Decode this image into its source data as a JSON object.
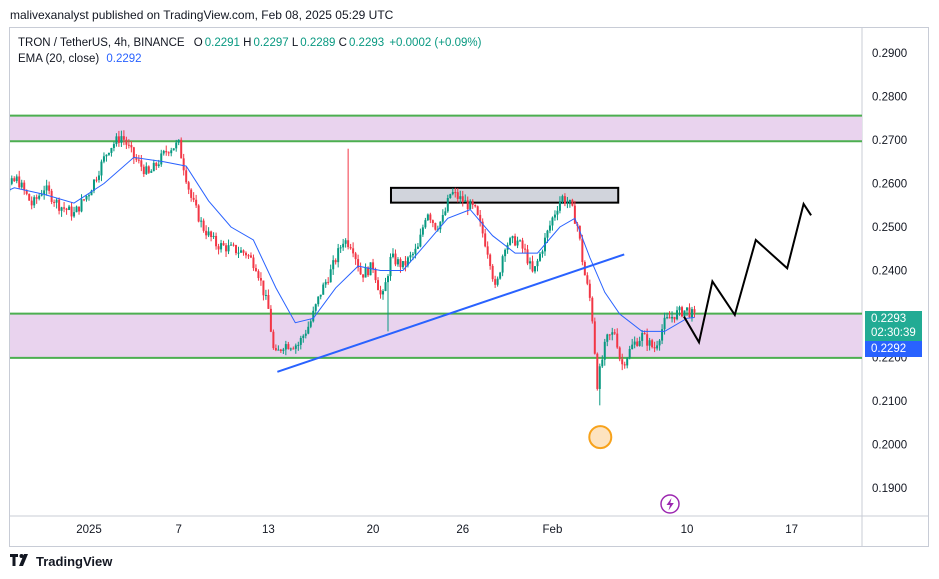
{
  "header": {
    "published_text": "malivexanalyst published on TradingView.com, Feb 08, 2025 05:29 UTC"
  },
  "legend": {
    "symbol": "TRON / TetherUS, 4h, BINANCE",
    "o_label": "O",
    "o_value": "0.2291",
    "h_label": "H",
    "h_value": "0.2297",
    "l_label": "L",
    "l_value": "0.2289",
    "c_label": "C",
    "c_value": "0.2293",
    "change": "+0.0002 (+0.09%)",
    "ema_label": "EMA (20, close)",
    "ema_value": "0.2292"
  },
  "badges": {
    "close_price": "0.2293",
    "countdown": "02:30:39",
    "ema_price": "0.2292"
  },
  "footer": {
    "brand": "TradingView"
  },
  "colors": {
    "up": "#089981",
    "down": "#f23645",
    "ema": "#2962ff",
    "zone_fill": "#e9d3ee",
    "zone_border": "#4caf50",
    "resistance_box": "#d1d4dc"
  },
  "icons": {
    "lightning": "lightning-icon",
    "logo": "tradingview-logo-icon"
  },
  "chart_data": {
    "type": "candlestick",
    "interval": "4h",
    "ylim": [
      0.186,
      0.293
    ],
    "y_ticks": [
      "0.2900",
      "0.2800",
      "0.2700",
      "0.2600",
      "0.2500",
      "0.2400",
      "0.2200",
      "0.2100",
      "0.2000",
      "0.1900"
    ],
    "x_ticks": [
      {
        "label": "2025",
        "day": 0
      },
      {
        "label": "7",
        "day": 6
      },
      {
        "label": "13",
        "day": 12
      },
      {
        "label": "20",
        "day": 19
      },
      {
        "label": "26",
        "day": 25
      },
      {
        "label": "Feb",
        "day": 31
      },
      {
        "label": "10",
        "day": 40
      },
      {
        "label": "17",
        "day": 47
      }
    ],
    "x_range_days": [
      -7.2,
      50.5
    ],
    "price_path": [
      [
        -7.0,
        0.253
      ],
      [
        -6.3,
        0.262
      ],
      [
        -5.5,
        0.259
      ],
      [
        -4.8,
        0.261
      ],
      [
        -3.8,
        0.255
      ],
      [
        -3.0,
        0.259
      ],
      [
        -2.0,
        0.255
      ],
      [
        -1.0,
        0.253
      ],
      [
        0.0,
        0.258
      ],
      [
        1.3,
        0.268
      ],
      [
        2.2,
        0.271
      ],
      [
        3.0,
        0.266
      ],
      [
        4.0,
        0.262
      ],
      [
        5.3,
        0.268
      ],
      [
        6.0,
        0.269
      ],
      [
        6.8,
        0.257
      ],
      [
        7.6,
        0.25
      ],
      [
        8.5,
        0.246
      ],
      [
        9.5,
        0.245
      ],
      [
        10.5,
        0.244
      ],
      [
        11.2,
        0.241
      ],
      [
        12.0,
        0.231
      ],
      [
        12.4,
        0.22
      ],
      [
        13.0,
        0.223
      ],
      [
        14.0,
        0.223
      ],
      [
        14.8,
        0.228
      ],
      [
        15.5,
        0.235
      ],
      [
        16.2,
        0.24
      ],
      [
        17.0,
        0.247
      ],
      [
        17.6,
        0.246
      ],
      [
        18.2,
        0.239
      ],
      [
        19.0,
        0.241
      ],
      [
        19.6,
        0.233
      ],
      [
        20.2,
        0.243
      ],
      [
        21.0,
        0.241
      ],
      [
        22.0,
        0.245
      ],
      [
        22.6,
        0.254
      ],
      [
        23.2,
        0.25
      ],
      [
        23.7,
        0.252
      ],
      [
        24.2,
        0.258
      ],
      [
        25.0,
        0.256
      ],
      [
        25.8,
        0.254
      ],
      [
        26.3,
        0.249
      ],
      [
        26.8,
        0.243
      ],
      [
        27.2,
        0.235
      ],
      [
        27.8,
        0.246
      ],
      [
        28.6,
        0.247
      ],
      [
        29.2,
        0.244
      ],
      [
        29.7,
        0.239
      ],
      [
        30.3,
        0.245
      ],
      [
        31.0,
        0.252
      ],
      [
        31.6,
        0.257
      ],
      [
        32.2,
        0.255
      ],
      [
        32.7,
        0.25
      ],
      [
        33.1,
        0.24
      ],
      [
        33.6,
        0.232
      ],
      [
        34.0,
        0.214
      ],
      [
        34.6,
        0.224
      ],
      [
        35.2,
        0.226
      ],
      [
        35.6,
        0.218
      ],
      [
        36.4,
        0.223
      ],
      [
        37.0,
        0.225
      ],
      [
        37.8,
        0.222
      ],
      [
        38.5,
        0.228
      ],
      [
        39.2,
        0.23
      ],
      [
        40.0,
        0.231
      ],
      [
        40.5,
        0.2293
      ]
    ],
    "wick_spikes": [
      {
        "day": 17.4,
        "high": 0.268
      },
      {
        "day": 20.0,
        "low": 0.226
      },
      {
        "day": 34.2,
        "low": 0.209
      }
    ],
    "ema_20": [
      [
        -7.0,
        0.256
      ],
      [
        -5.0,
        0.259
      ],
      [
        -3.0,
        0.2575
      ],
      [
        -1.0,
        0.2555
      ],
      [
        1.0,
        0.26
      ],
      [
        3.0,
        0.266
      ],
      [
        5.0,
        0.265
      ],
      [
        6.5,
        0.264
      ],
      [
        8.0,
        0.256
      ],
      [
        9.5,
        0.25
      ],
      [
        11.0,
        0.247
      ],
      [
        12.5,
        0.236
      ],
      [
        13.8,
        0.228
      ],
      [
        15.0,
        0.229
      ],
      [
        16.5,
        0.236
      ],
      [
        18.0,
        0.241
      ],
      [
        19.5,
        0.24
      ],
      [
        21.0,
        0.24
      ],
      [
        22.5,
        0.246
      ],
      [
        24.0,
        0.252
      ],
      [
        25.5,
        0.254
      ],
      [
        27.0,
        0.248
      ],
      [
        28.5,
        0.244
      ],
      [
        30.0,
        0.244
      ],
      [
        31.5,
        0.25
      ],
      [
        32.5,
        0.252
      ],
      [
        33.5,
        0.243
      ],
      [
        34.5,
        0.235
      ],
      [
        35.5,
        0.23
      ],
      [
        37.0,
        0.226
      ],
      [
        38.5,
        0.226
      ],
      [
        40.0,
        0.229
      ],
      [
        40.5,
        0.2292
      ]
    ],
    "annotations": {
      "support_zone": [
        0.2199,
        0.2301
      ],
      "resistance_zone": [
        0.2697,
        0.2756
      ],
      "resistance_box": {
        "day_start": 20.2,
        "day_end": 35.4,
        "low": 0.2556,
        "high": 0.259
      },
      "trendline": [
        [
          12.6,
          0.2167
        ],
        [
          35.8,
          0.2437
        ]
      ],
      "projection": [
        [
          39.8,
          0.2294
        ],
        [
          40.8,
          0.2235
        ],
        [
          41.7,
          0.2375
        ],
        [
          43.2,
          0.2298
        ],
        [
          44.6,
          0.247
        ],
        [
          46.7,
          0.2405
        ],
        [
          47.8,
          0.2553
        ],
        [
          48.3,
          0.2527
        ]
      ],
      "low_marker": {
        "day": 34.2,
        "price": 0.2017
      }
    }
  }
}
